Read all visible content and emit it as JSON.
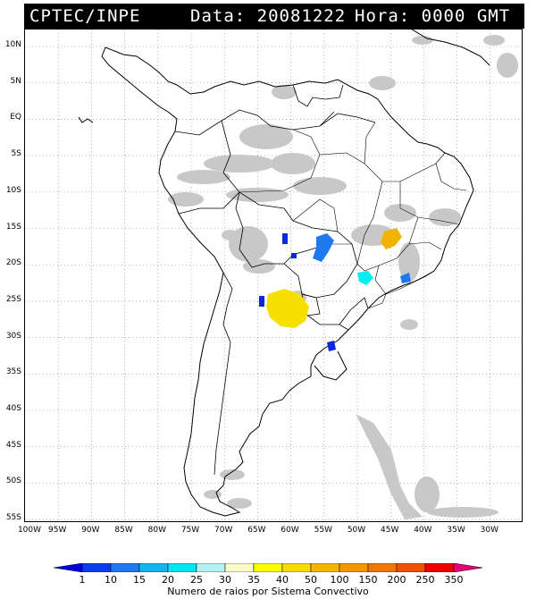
{
  "header": {
    "agency": "CPTEC/INPE",
    "date_label": "Data: 20081222",
    "time_label": "Hora: 0000 GMT"
  },
  "map": {
    "lat_labels": [
      "10N",
      "5N",
      "EQ",
      "5S",
      "10S",
      "15S",
      "20S",
      "25S",
      "30S",
      "35S",
      "40S",
      "45S",
      "50S",
      "55S"
    ],
    "lon_labels": [
      "100W",
      "95W",
      "90W",
      "85W",
      "80W",
      "75W",
      "70W",
      "65W",
      "60W",
      "55W",
      "50W",
      "45W",
      "40W",
      "35W",
      "30W"
    ],
    "cloud_color": "#c8c8c8",
    "coast_color": "#000000",
    "grid_color": "#808080",
    "lightning_cells": [
      {
        "region": "Paraguay / N Argentina",
        "count_class": "35-40",
        "color": "#f5e000"
      },
      {
        "region": "Minas Gerais / Bahia",
        "count_class": "50-100",
        "color": "#f0b400"
      },
      {
        "region": "Sao Paulo",
        "count_class": "20-25",
        "color": "#00f0f0"
      },
      {
        "region": "Mato Grosso do Sul",
        "count_class": "10-15",
        "color": "#1e78f0"
      },
      {
        "region": "Rio de Janeiro",
        "count_class": "10-15",
        "color": "#1e78f0"
      },
      {
        "region": "Rio Grande do Sul",
        "count_class": "1-10",
        "color": "#0a28dc"
      },
      {
        "region": "Mato Grosso",
        "count_class": "1-10",
        "color": "#0a28dc"
      },
      {
        "region": "Chaco",
        "count_class": "1-10",
        "color": "#0a28dc"
      }
    ]
  },
  "colorbar": {
    "labels": [
      "1",
      "10",
      "15",
      "20",
      "25",
      "30",
      "35",
      "40",
      "50",
      "100",
      "150",
      "200",
      "250",
      "350"
    ],
    "colors": [
      "#0000dc",
      "#0a3cf0",
      "#1e78f0",
      "#14b4f0",
      "#00e6f0",
      "#b4f0f0",
      "#fafac8",
      "#fafa00",
      "#f5dc00",
      "#f5b400",
      "#f59600",
      "#f07800",
      "#f05000",
      "#f00000",
      "#e6007a"
    ],
    "caption": "Numero de raios por Sistema Convectivo"
  }
}
